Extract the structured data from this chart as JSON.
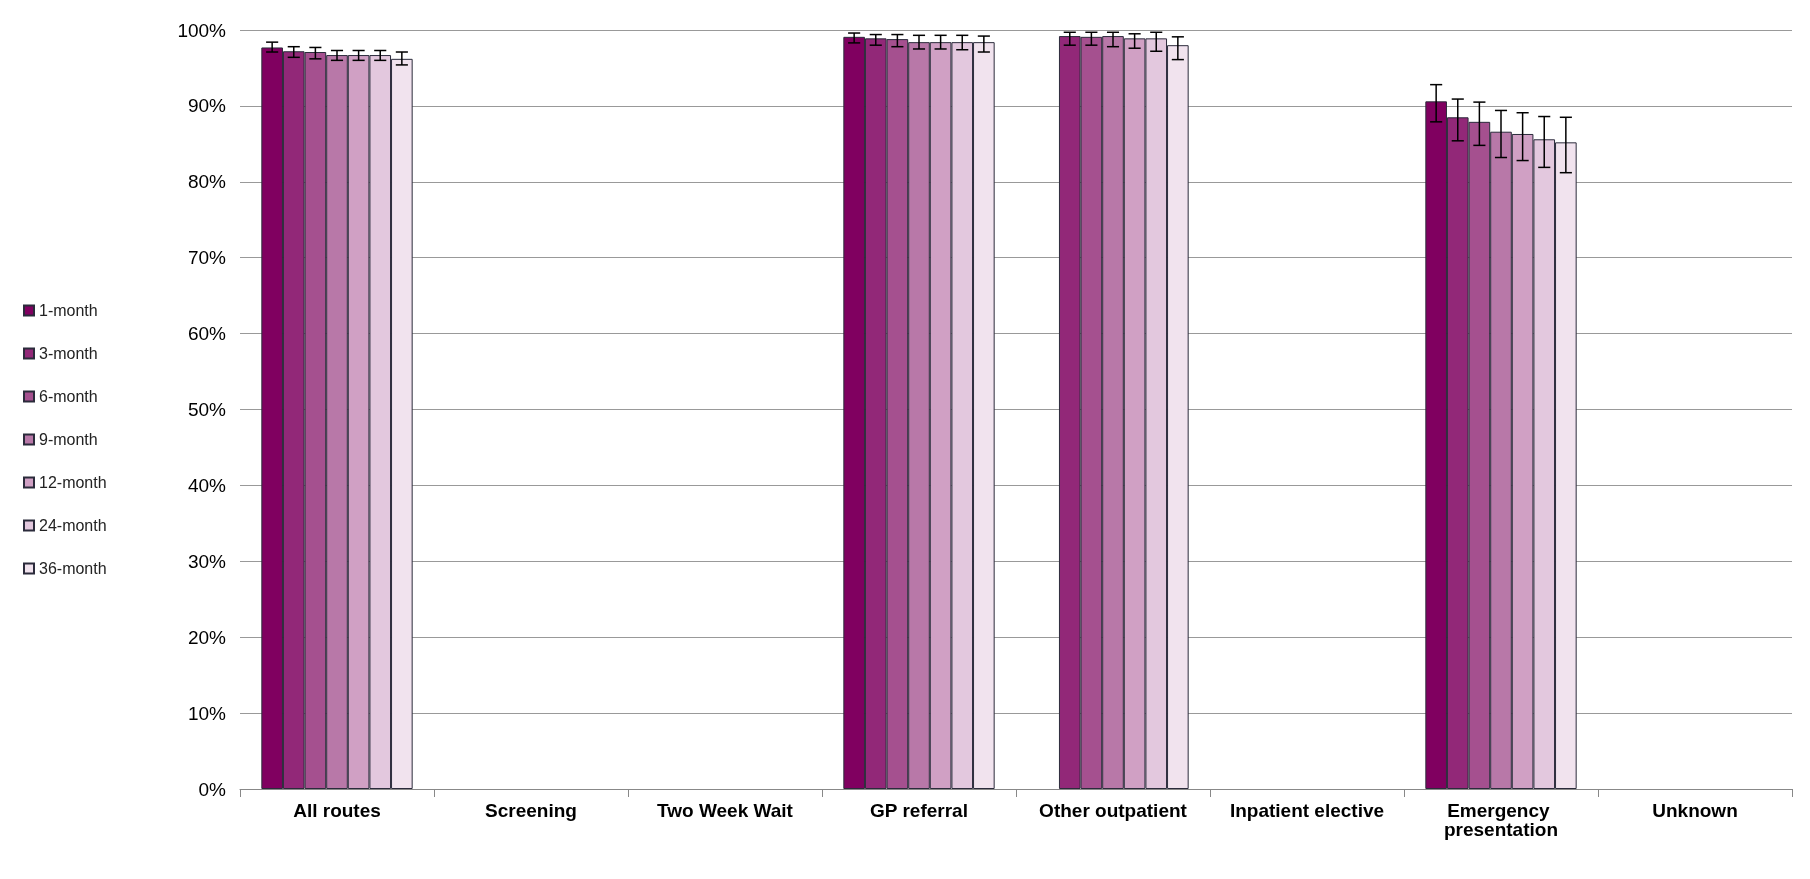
{
  "chart_data": {
    "type": "bar",
    "categories": [
      "All routes",
      "Screening",
      "Two Week Wait",
      "GP referral",
      "Other outpatient",
      "Inpatient elective",
      "Emergency presentation",
      "Unknown"
    ],
    "series": [
      {
        "name": "1-month",
        "color": "#800060",
        "values": [
          97.7,
          null,
          null,
          99.1,
          null,
          null,
          90.6,
          null
        ],
        "errors": [
          [
            97.1,
            98.4
          ],
          null,
          null,
          [
            98.3,
            99.6
          ],
          null,
          null,
          [
            87.9,
            92.8
          ],
          null
        ]
      },
      {
        "name": "3-month",
        "color": "#922878",
        "values": [
          97.2,
          null,
          null,
          98.9,
          99.2,
          null,
          88.5,
          null
        ],
        "errors": [
          [
            96.4,
            97.8
          ],
          null,
          null,
          [
            98.0,
            99.4
          ],
          [
            98.0,
            99.7
          ],
          null,
          [
            85.4,
            90.9
          ],
          null
        ]
      },
      {
        "name": "6-month",
        "color": "#a5508f",
        "values": [
          97.1,
          null,
          null,
          98.8,
          99.1,
          null,
          87.9,
          null
        ],
        "errors": [
          [
            96.2,
            97.7
          ],
          null,
          null,
          [
            97.8,
            99.4
          ],
          [
            98.0,
            99.7
          ],
          null,
          [
            84.8,
            90.5
          ],
          null
        ]
      },
      {
        "name": "9-month",
        "color": "#b878a8",
        "values": [
          96.7,
          null,
          null,
          98.4,
          99.2,
          null,
          86.6,
          null
        ],
        "errors": [
          [
            96.0,
            97.3
          ],
          null,
          null,
          [
            97.5,
            99.3
          ],
          [
            97.8,
            99.7
          ],
          null,
          [
            83.2,
            89.4
          ],
          null
        ]
      },
      {
        "name": "12-month",
        "color": "#d0a0c4",
        "values": [
          96.7,
          null,
          null,
          98.4,
          98.9,
          null,
          86.3,
          null
        ],
        "errors": [
          [
            96.0,
            97.3
          ],
          null,
          null,
          [
            97.5,
            99.3
          ],
          [
            97.6,
            99.5
          ],
          null,
          [
            82.8,
            89.1
          ],
          null
        ]
      },
      {
        "name": "24-month",
        "color": "#e3c8de",
        "values": [
          96.7,
          null,
          null,
          98.4,
          98.9,
          null,
          85.6,
          null
        ],
        "errors": [
          [
            96.0,
            97.3
          ],
          null,
          null,
          [
            97.4,
            99.3
          ],
          [
            97.2,
            99.7
          ],
          null,
          [
            81.9,
            88.6
          ],
          null
        ]
      },
      {
        "name": "36-month",
        "color": "#f1e3ee",
        "values": [
          96.2,
          null,
          null,
          98.4,
          98.0,
          null,
          85.2,
          null
        ],
        "errors": [
          [
            95.4,
            97.1
          ],
          null,
          null,
          [
            97.1,
            99.2
          ],
          [
            96.1,
            99.1
          ],
          null,
          [
            81.2,
            88.5
          ],
          null
        ]
      }
    ],
    "ylim": [
      0,
      100
    ],
    "yticks": [
      {
        "value": 0,
        "label": "0%"
      },
      {
        "value": 10,
        "label": "10%"
      },
      {
        "value": 20,
        "label": "20%"
      },
      {
        "value": 30,
        "label": "30%"
      },
      {
        "value": 40,
        "label": "40%"
      },
      {
        "value": 50,
        "label": "50%"
      },
      {
        "value": 60,
        "label": "60%"
      },
      {
        "value": 70,
        "label": "70%"
      },
      {
        "value": 80,
        "label": "80%"
      },
      {
        "value": 90,
        "label": "90%"
      },
      {
        "value": 100,
        "label": "100%"
      }
    ],
    "grid": "y",
    "legend": "left"
  }
}
